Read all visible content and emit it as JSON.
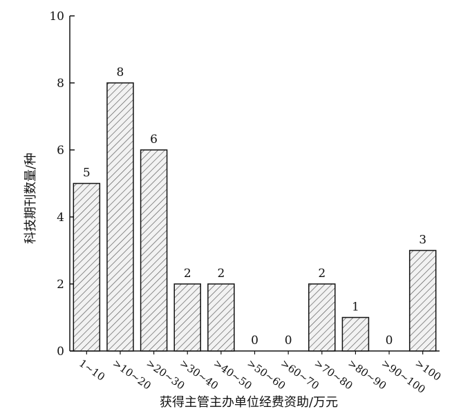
{
  "chart_data": {
    "type": "bar",
    "categories": [
      "1~10",
      ">10~20",
      ">20~30",
      ">30~40",
      ">40~50",
      ">50~60",
      ">60~70",
      ">70~80",
      ">80~90",
      ">90~100",
      ">100"
    ],
    "values": [
      5,
      8,
      6,
      2,
      2,
      0,
      0,
      2,
      1,
      0,
      3
    ],
    "data_labels": [
      "5",
      "8",
      "6",
      "2",
      "2",
      "0",
      "0",
      "2",
      "1",
      "0",
      "3"
    ],
    "xlabel": "获得主管主办单位经费资助/万元",
    "ylabel": "科技期刊数量/种",
    "ylim": [
      0,
      10
    ],
    "yticks": [
      "0",
      "2",
      "4",
      "6",
      "8",
      "10"
    ],
    "grid": false,
    "bar_fill": "hatched",
    "colors": {
      "bar_stroke": "#111111",
      "hatch": "#555555",
      "bar_bg": "#f2f2f2"
    }
  }
}
